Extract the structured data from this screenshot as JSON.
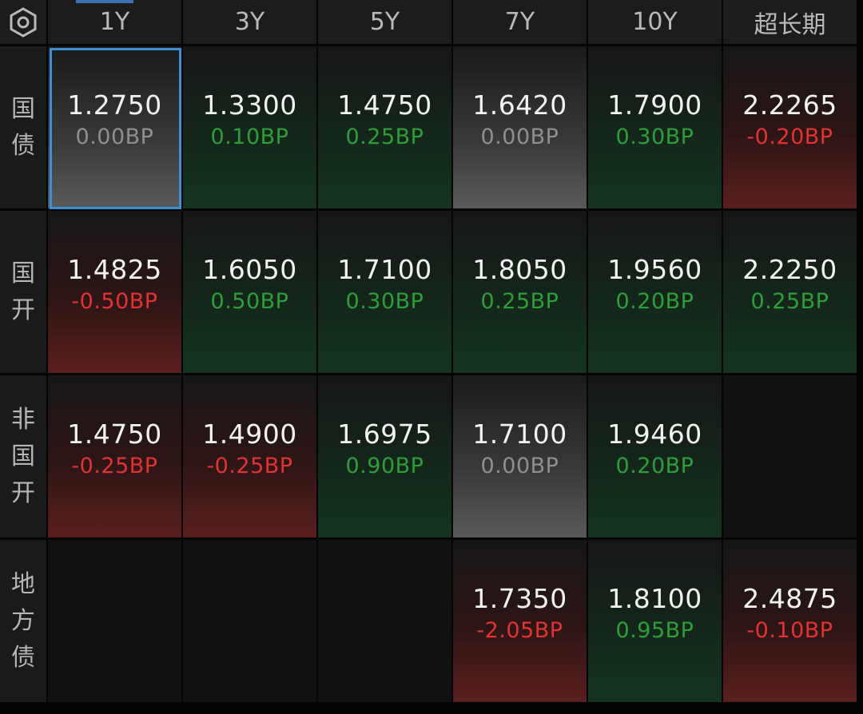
{
  "corner_icon": "hexagon-settings-icon",
  "columns": [
    "1Y",
    "3Y",
    "5Y",
    "7Y",
    "10Y",
    "超长期"
  ],
  "rows": [
    {
      "label_chars": [
        "国",
        "债"
      ],
      "cells": [
        {
          "yield": "1.2750",
          "change": "0.00BP",
          "trend": "flat",
          "selected": true
        },
        {
          "yield": "1.3300",
          "change": "0.10BP",
          "trend": "up"
        },
        {
          "yield": "1.4750",
          "change": "0.25BP",
          "trend": "up"
        },
        {
          "yield": "1.6420",
          "change": "0.00BP",
          "trend": "flat"
        },
        {
          "yield": "1.7900",
          "change": "0.30BP",
          "trend": "up"
        },
        {
          "yield": "2.2265",
          "change": "-0.20BP",
          "trend": "down"
        }
      ]
    },
    {
      "label_chars": [
        "国",
        "开"
      ],
      "cells": [
        {
          "yield": "1.4825",
          "change": "-0.50BP",
          "trend": "down"
        },
        {
          "yield": "1.6050",
          "change": "0.50BP",
          "trend": "up"
        },
        {
          "yield": "1.7100",
          "change": "0.30BP",
          "trend": "up"
        },
        {
          "yield": "1.8050",
          "change": "0.25BP",
          "trend": "up"
        },
        {
          "yield": "1.9560",
          "change": "0.20BP",
          "trend": "up"
        },
        {
          "yield": "2.2250",
          "change": "0.25BP",
          "trend": "up"
        }
      ]
    },
    {
      "label_chars": [
        "非",
        "国",
        "开"
      ],
      "cells": [
        {
          "yield": "1.4750",
          "change": "-0.25BP",
          "trend": "down"
        },
        {
          "yield": "1.4900",
          "change": "-0.25BP",
          "trend": "down"
        },
        {
          "yield": "1.6975",
          "change": "0.90BP",
          "trend": "up"
        },
        {
          "yield": "1.7100",
          "change": "0.00BP",
          "trend": "flat"
        },
        {
          "yield": "1.9460",
          "change": "0.20BP",
          "trend": "up"
        },
        null
      ]
    },
    {
      "label_chars": [
        "地",
        "方",
        "债"
      ],
      "cells": [
        null,
        null,
        null,
        {
          "yield": "1.7350",
          "change": "-2.05BP",
          "trend": "down"
        },
        {
          "yield": "1.8100",
          "change": "0.95BP",
          "trend": "up"
        },
        {
          "yield": "2.4875",
          "change": "-0.10BP",
          "trend": "down"
        }
      ]
    }
  ],
  "colors": {
    "up": "#2e9d3a",
    "down": "#e23232",
    "flat": "#8f8f8f",
    "selected_border": "#3d8fd6"
  }
}
